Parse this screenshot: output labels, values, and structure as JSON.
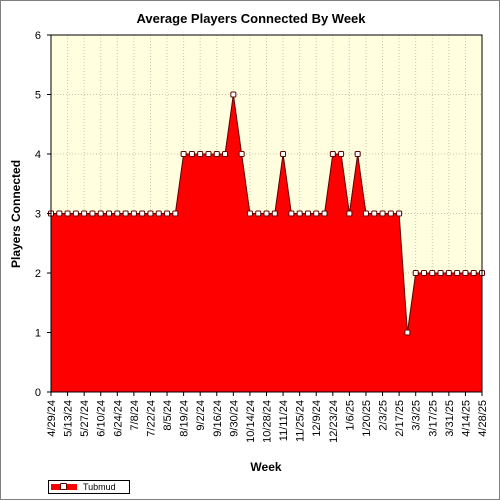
{
  "chart_data": {
    "type": "area",
    "title": "Average Players Connected By Week",
    "xlabel": "Week",
    "ylabel": "Players Connected",
    "ylim": [
      0,
      6
    ],
    "yticks": [
      0,
      1,
      2,
      3,
      4,
      5,
      6
    ],
    "grid": true,
    "legend_position": "bottom-left",
    "x": [
      "4/29/24",
      "5/6/24",
      "5/13/24",
      "5/20/24",
      "5/27/24",
      "6/3/24",
      "6/10/24",
      "6/17/24",
      "6/24/24",
      "7/1/24",
      "7/8/24",
      "7/15/24",
      "7/22/24",
      "7/29/24",
      "8/5/24",
      "8/12/24",
      "8/19/24",
      "8/26/24",
      "9/2/24",
      "9/9/24",
      "9/16/24",
      "9/23/24",
      "9/30/24",
      "10/7/24",
      "10/14/24",
      "10/21/24",
      "10/28/24",
      "11/4/24",
      "11/11/24",
      "11/18/24",
      "11/25/24",
      "12/2/24",
      "12/9/24",
      "12/16/24",
      "12/23/24",
      "12/30/24",
      "1/6/25",
      "1/13/25",
      "1/20/25",
      "1/27/25",
      "2/3/25",
      "2/10/25",
      "2/17/25",
      "2/24/25",
      "3/3/25",
      "3/10/25",
      "3/17/25",
      "3/24/25",
      "3/31/25",
      "4/7/25",
      "4/14/25",
      "4/21/25",
      "4/28/25"
    ],
    "xtick_labels": [
      "4/29/24",
      "5/13/24",
      "5/27/24",
      "6/10/24",
      "6/24/24",
      "7/8/24",
      "7/22/24",
      "8/5/24",
      "8/19/24",
      "9/2/24",
      "9/16/24",
      "9/30/24",
      "10/14/24",
      "10/28/24",
      "11/11/24",
      "11/25/24",
      "12/9/24",
      "12/23/24",
      "1/6/25",
      "1/20/25",
      "2/3/25",
      "2/17/25",
      "3/3/25",
      "3/17/25",
      "3/31/25",
      "4/14/25",
      "4/28/25"
    ],
    "series": [
      {
        "name": "Tubmud",
        "color": "#ff0000",
        "values": [
          3,
          3,
          3,
          3,
          3,
          3,
          3,
          3,
          3,
          3,
          3,
          3,
          3,
          3,
          3,
          3,
          4,
          4,
          4,
          4,
          4,
          4,
          5,
          4,
          3,
          3,
          3,
          3,
          4,
          3,
          3,
          3,
          3,
          3,
          4,
          4,
          3,
          4,
          3,
          3,
          3,
          3,
          3,
          1,
          2,
          2,
          2,
          2,
          2,
          2,
          2,
          2,
          2
        ]
      }
    ]
  },
  "colors": {
    "plot_background": "#ffffe0",
    "area_fill": "#ff0000",
    "area_edge": "#600000",
    "marker_fill": "#ffffff"
  }
}
